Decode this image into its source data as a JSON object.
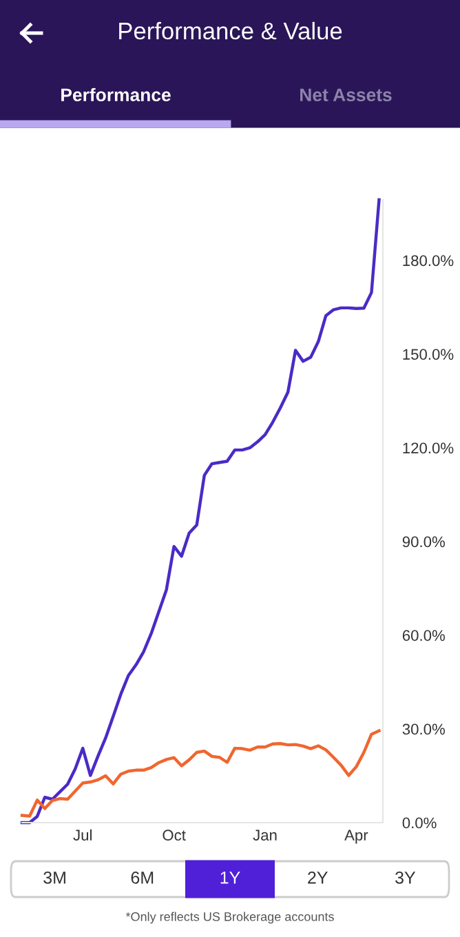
{
  "chart_data": {
    "type": "line",
    "title": "Performance & Value",
    "annotations": [
      "Performance",
      "Net Assets",
      "3M",
      "6M",
      "1Y",
      "2Y",
      "3Y",
      "*Only reflects US Brokerage accounts"
    ],
    "categories": [
      null,
      null,
      null,
      null,
      null,
      null,
      null,
      null,
      "Jul",
      null,
      null,
      null,
      null,
      null,
      null,
      null,
      null,
      null,
      null,
      null,
      "Oct",
      null,
      null,
      null,
      null,
      null,
      null,
      null,
      null,
      null,
      null,
      null,
      "Jan",
      null,
      null,
      null,
      null,
      null,
      null,
      null,
      null,
      null,
      null,
      null,
      "Apr",
      null,
      null,
      null
    ],
    "ylim": [
      0,
      199.4
    ],
    "yticks": [
      {
        "value": 0,
        "label": "0.0%"
      },
      {
        "value": 30,
        "label": "30.0%"
      },
      {
        "value": 60,
        "label": "60.0%"
      },
      {
        "value": 90,
        "label": "90.0%"
      },
      {
        "value": 120,
        "label": "120.0%"
      },
      {
        "value": 150,
        "label": "150.0%"
      },
      {
        "value": 180,
        "label": "180.0%"
      }
    ],
    "grid": false,
    "legend": false,
    "marker": "none",
    "line_style": "solid",
    "series": [
      {
        "color": "#4a2bc6",
        "values": [
          0,
          0,
          2,
          8.1,
          7.5,
          9.9,
          12.3,
          17.2,
          23.8,
          15.1,
          21.3,
          27.1,
          34.0,
          41.1,
          47.1,
          50.5,
          54.7,
          60.5,
          67.5,
          74.5,
          88.4,
          85.3,
          92.7,
          95.3,
          111.2,
          114.9,
          115.3,
          115.7,
          119.3,
          119.3,
          120,
          121.9,
          124.2,
          128.2,
          132.8,
          137.8,
          151.2,
          147.7,
          149.0,
          154.0,
          162.3,
          164.2,
          164.8,
          164.8,
          164.6,
          164.7,
          169.7,
          199.4
        ]
      },
      {
        "color": "#f0662f",
        "values": [
          2.3,
          2.1,
          7.2,
          4.5,
          7.1,
          7.7,
          7.5,
          10.1,
          12.7,
          13.0,
          13.7,
          15.0,
          12.4,
          15.5,
          16.5,
          16.8,
          16.8,
          17.6,
          19.2,
          20.2,
          20.8,
          18.2,
          20.1,
          22.5,
          22.9,
          21.2,
          20.9,
          19.3,
          23.8,
          23.7,
          23.2,
          24.2,
          24.2,
          25.2,
          25.3,
          24.9,
          25.0,
          24.5,
          23.7,
          24.6,
          23.3,
          20.9,
          18.4,
          15.1,
          17.9,
          22.5,
          28.3,
          29.4
        ]
      }
    ]
  }
}
